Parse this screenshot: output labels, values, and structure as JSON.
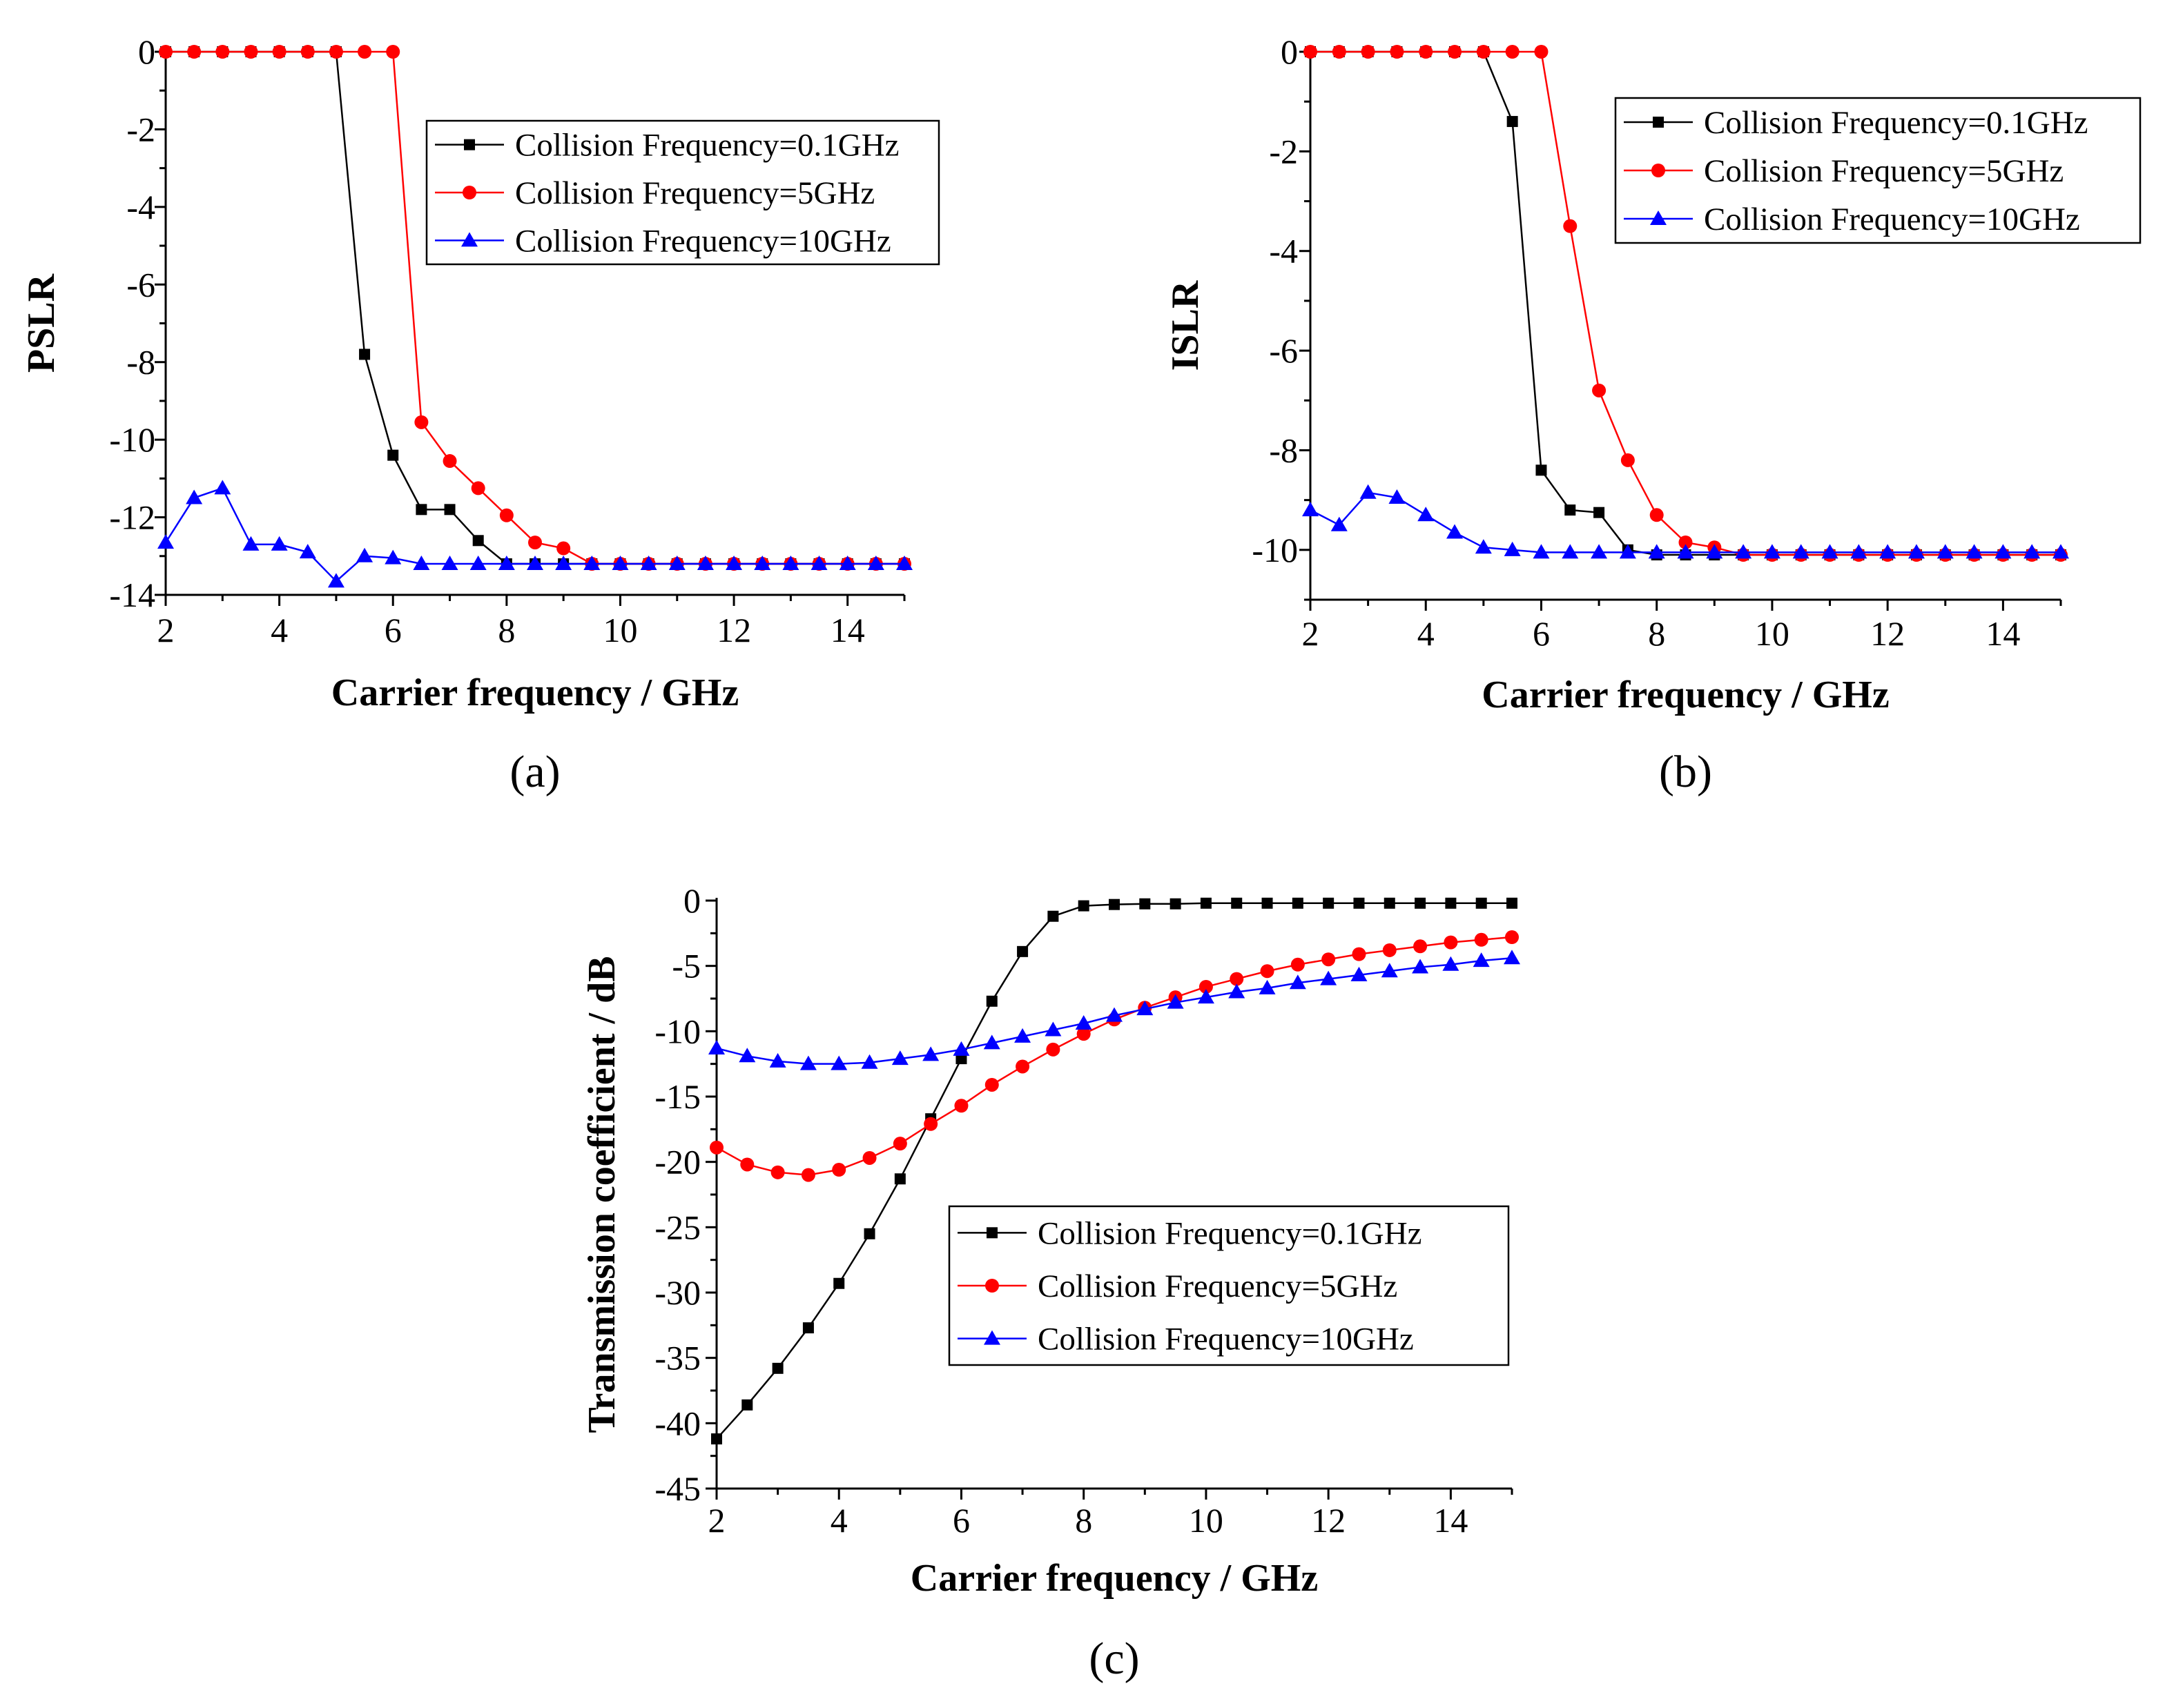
{
  "chart_data": [
    {
      "panel_label": "(a)",
      "type": "line",
      "xlabel": "Carrier frequency / GHz",
      "ylabel": "PSLR",
      "xlim": [
        2,
        15
      ],
      "ylim": [
        -14,
        0
      ],
      "xticks": [
        "2",
        "4",
        "6",
        "8",
        "10",
        "12",
        "14"
      ],
      "yticks": [
        "0",
        "-2",
        "-4",
        "-6",
        "-8",
        "-10",
        "-12",
        "-14"
      ],
      "grid": false,
      "legend_position": "top-right",
      "x": [
        2,
        2.5,
        3,
        3.5,
        4,
        4.5,
        5,
        5.5,
        6,
        6.5,
        7,
        7.5,
        8,
        8.5,
        9,
        9.5,
        10,
        10.5,
        11,
        11.5,
        12,
        12.5,
        13,
        13.5,
        14,
        14.5,
        15
      ],
      "series": [
        {
          "name": "Collision Frequency=0.1GHz",
          "color": "#000000",
          "marker": "square",
          "values": [
            0,
            0,
            0,
            0,
            0,
            0,
            0,
            -7.8,
            -10.4,
            -11.8,
            -11.8,
            -12.6,
            -13.2,
            -13.2,
            -13.2,
            -13.2,
            -13.2,
            -13.2,
            -13.2,
            -13.2,
            -13.2,
            -13.2,
            -13.2,
            -13.2,
            -13.2,
            -13.2,
            -13.2
          ]
        },
        {
          "name": "Collision Frequency=5GHz",
          "color": "#ff0000",
          "marker": "circle",
          "values": [
            0,
            0,
            0,
            0,
            0,
            0,
            0,
            0,
            0,
            -9.55,
            -10.55,
            -11.25,
            -11.95,
            -12.65,
            -12.8,
            -13.2,
            -13.2,
            -13.2,
            -13.2,
            -13.2,
            -13.2,
            -13.2,
            -13.2,
            -13.2,
            -13.2,
            -13.2,
            -13.2
          ]
        },
        {
          "name": "Collision Frequency=10GHz",
          "color": "#0000ff",
          "marker": "triangle",
          "values": [
            -12.65,
            -11.5,
            -11.25,
            -12.7,
            -12.7,
            -12.9,
            -13.65,
            -13.0,
            -13.05,
            -13.2,
            -13.2,
            -13.2,
            -13.2,
            -13.2,
            -13.2,
            -13.2,
            -13.2,
            -13.2,
            -13.2,
            -13.2,
            -13.2,
            -13.2,
            -13.2,
            -13.2,
            -13.2,
            -13.2,
            -13.2
          ]
        }
      ]
    },
    {
      "panel_label": "(b)",
      "type": "line",
      "xlabel": "Carrier frequency / GHz",
      "ylabel": "ISLR",
      "xlim": [
        2,
        15
      ],
      "ylim": [
        -11,
        0
      ],
      "xticks": [
        "2",
        "4",
        "6",
        "8",
        "10",
        "12",
        "14"
      ],
      "yticks": [
        "0",
        "-2",
        "-4",
        "-6",
        "-8",
        "-10"
      ],
      "grid": false,
      "legend_position": "top-right",
      "x": [
        2,
        2.5,
        3,
        3.5,
        4,
        4.5,
        5,
        5.5,
        6,
        6.5,
        7,
        7.5,
        8,
        8.5,
        9,
        9.5,
        10,
        10.5,
        11,
        11.5,
        12,
        12.5,
        13,
        13.5,
        14,
        14.5,
        15
      ],
      "series": [
        {
          "name": "Collision Frequency=0.1GHz",
          "color": "#000000",
          "marker": "square",
          "values": [
            0,
            0,
            0,
            0,
            0,
            0,
            0,
            -1.4,
            -8.4,
            -9.2,
            -9.25,
            -10.0,
            -10.1,
            -10.1,
            -10.1,
            -10.1,
            -10.1,
            -10.1,
            -10.1,
            -10.1,
            -10.1,
            -10.1,
            -10.1,
            -10.1,
            -10.1,
            -10.1,
            -10.1
          ]
        },
        {
          "name": "Collision Frequency=5GHz",
          "color": "#ff0000",
          "marker": "circle",
          "values": [
            0,
            0,
            0,
            0,
            0,
            0,
            0,
            0,
            0,
            -3.5,
            -6.8,
            -8.2,
            -9.3,
            -9.85,
            -9.95,
            -10.1,
            -10.1,
            -10.1,
            -10.1,
            -10.1,
            -10.1,
            -10.1,
            -10.1,
            -10.1,
            -10.1,
            -10.1,
            -10.1
          ]
        },
        {
          "name": "Collision Frequency=10GHz",
          "color": "#0000ff",
          "marker": "triangle",
          "values": [
            -9.2,
            -9.5,
            -8.85,
            -8.95,
            -9.3,
            -9.65,
            -9.95,
            -10.0,
            -10.05,
            -10.05,
            -10.05,
            -10.05,
            -10.05,
            -10.05,
            -10.05,
            -10.05,
            -10.05,
            -10.05,
            -10.05,
            -10.05,
            -10.05,
            -10.05,
            -10.05,
            -10.05,
            -10.05,
            -10.05,
            -10.05
          ]
        }
      ]
    },
    {
      "panel_label": "(c)",
      "type": "line",
      "xlabel": "Carrier frequency / GHz",
      "ylabel": "Transmission coefficient / dB",
      "xlim": [
        2,
        15
      ],
      "ylim": [
        -45,
        0
      ],
      "xticks": [
        "2",
        "4",
        "6",
        "8",
        "10",
        "12",
        "14"
      ],
      "yticks": [
        "0",
        "-5",
        "-10",
        "-15",
        "-20",
        "-25",
        "-30",
        "-35",
        "-40",
        "-45"
      ],
      "grid": false,
      "legend_position": "bottom-right",
      "x": [
        2,
        2.5,
        3,
        3.5,
        4,
        4.5,
        5,
        5.5,
        6,
        6.5,
        7,
        7.5,
        8,
        8.5,
        9,
        9.5,
        10,
        10.5,
        11,
        11.5,
        12,
        12.5,
        13,
        13.5,
        14,
        14.5,
        15
      ],
      "series": [
        {
          "name": "Collision Frequency=0.1GHz",
          "color": "#000000",
          "marker": "square",
          "values": [
            -41.2,
            -38.6,
            -35.8,
            -32.7,
            -29.3,
            -25.5,
            -21.3,
            -16.7,
            -12.1,
            -7.7,
            -3.9,
            -1.2,
            -0.4,
            -0.3,
            -0.25,
            -0.25,
            -0.2,
            -0.2,
            -0.2,
            -0.2,
            -0.2,
            -0.2,
            -0.2,
            -0.2,
            -0.2,
            -0.2,
            -0.2
          ]
        },
        {
          "name": "Collision Frequency=5GHz",
          "color": "#ff0000",
          "marker": "circle",
          "values": [
            -18.9,
            -20.2,
            -20.8,
            -21.0,
            -20.6,
            -19.7,
            -18.6,
            -17.1,
            -15.7,
            -14.1,
            -12.7,
            -11.4,
            -10.2,
            -9.1,
            -8.2,
            -7.4,
            -6.6,
            -6.0,
            -5.4,
            -4.9,
            -4.5,
            -4.1,
            -3.8,
            -3.5,
            -3.2,
            -3.0,
            -2.8
          ]
        },
        {
          "name": "Collision Frequency=10GHz",
          "color": "#0000ff",
          "marker": "triangle",
          "values": [
            -11.3,
            -11.9,
            -12.3,
            -12.5,
            -12.5,
            -12.4,
            -12.1,
            -11.8,
            -11.4,
            -10.9,
            -10.4,
            -9.9,
            -9.4,
            -8.8,
            -8.3,
            -7.8,
            -7.4,
            -7.0,
            -6.7,
            -6.3,
            -6.0,
            -5.7,
            -5.4,
            -5.1,
            -4.9,
            -4.6,
            -4.4
          ]
        }
      ]
    }
  ]
}
